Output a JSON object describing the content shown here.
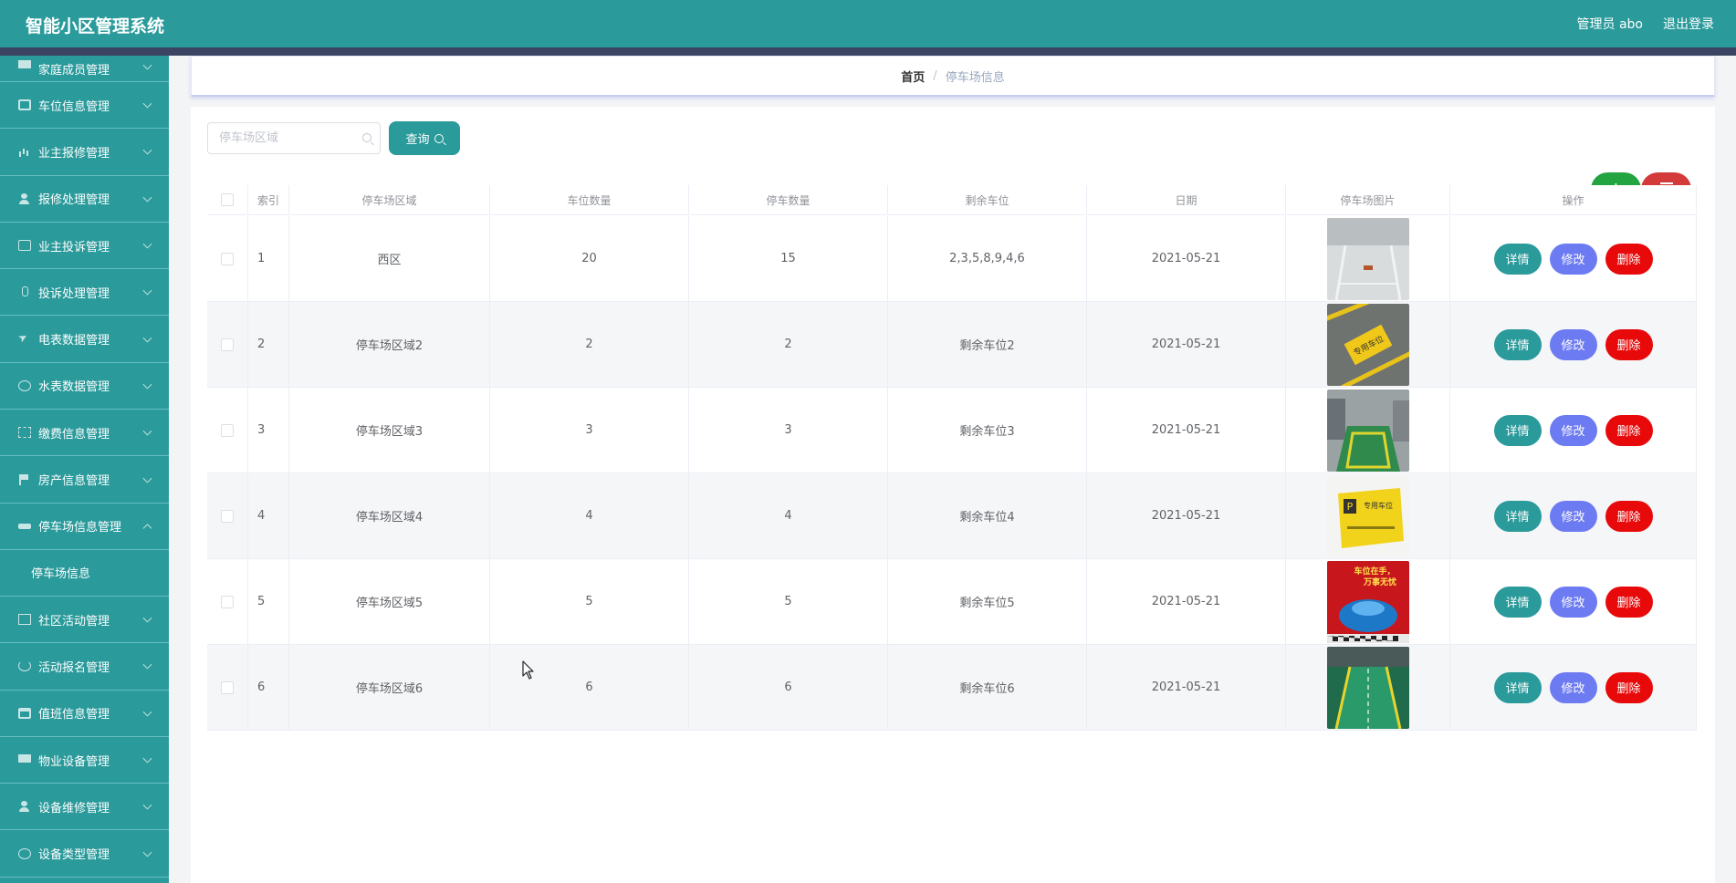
{
  "header": {
    "title": "智能小区管理系统",
    "user": "管理员 abo",
    "logout": "退出登录"
  },
  "sidebar": {
    "items": [
      {
        "label": "家庭成员管理",
        "icon": "monitor-icon"
      },
      {
        "label": "车位信息管理",
        "icon": "box-icon"
      },
      {
        "label": "业主报修管理",
        "icon": "bar-chart-icon"
      },
      {
        "label": "报修处理管理",
        "icon": "person-icon"
      },
      {
        "label": "业主投诉管理",
        "icon": "chat-icon"
      },
      {
        "label": "投诉处理管理",
        "icon": "mic-icon"
      },
      {
        "label": "电表数据管理",
        "icon": "plane-icon"
      },
      {
        "label": "水表数据管理",
        "icon": "gauge-icon"
      },
      {
        "label": "缴费信息管理",
        "icon": "frame-icon"
      },
      {
        "label": "房产信息管理",
        "icon": "flag-icon"
      },
      {
        "label": "停车场信息管理",
        "icon": "car-icon",
        "expanded": true
      },
      {
        "label": "社区活动管理",
        "icon": "mail-icon"
      },
      {
        "label": "活动报名管理",
        "icon": "power-icon"
      },
      {
        "label": "值班信息管理",
        "icon": "calendar-icon"
      },
      {
        "label": "物业设备管理",
        "icon": "monitor-icon"
      },
      {
        "label": "设备维修管理",
        "icon": "person-icon"
      },
      {
        "label": "设备类型管理",
        "icon": "globe-icon"
      }
    ],
    "subitem": "停车场信息"
  },
  "breadcrumb": {
    "home": "首页",
    "separator": "/",
    "current": "停车场信息"
  },
  "search": {
    "placeholder": "停车场区域",
    "value": "",
    "button": "查询"
  },
  "actions": {
    "add": "+",
    "delete_icon": "trash-icon"
  },
  "table": {
    "columns": [
      "索引",
      "停车场区域",
      "车位数量",
      "停车数量",
      "剩余车位",
      "日期",
      "停车场图片",
      "操作"
    ],
    "rows": [
      {
        "index": "1",
        "area": "西区",
        "spaces": "20",
        "parked": "15",
        "remaining": "2,3,5,8,9,4,6",
        "date": "2021-05-21"
      },
      {
        "index": "2",
        "area": "停车场区域2",
        "spaces": "2",
        "parked": "2",
        "remaining": "剩余车位2",
        "date": "2021-05-21"
      },
      {
        "index": "3",
        "area": "停车场区域3",
        "spaces": "3",
        "parked": "3",
        "remaining": "剩余车位3",
        "date": "2021-05-21"
      },
      {
        "index": "4",
        "area": "停车场区域4",
        "spaces": "4",
        "parked": "4",
        "remaining": "剩余车位4",
        "date": "2021-05-21"
      },
      {
        "index": "5",
        "area": "停车场区域5",
        "spaces": "5",
        "parked": "5",
        "remaining": "剩余车位5",
        "date": "2021-05-21"
      },
      {
        "index": "6",
        "area": "停车场区域6",
        "spaces": "6",
        "parked": "6",
        "remaining": "剩余车位6",
        "date": "2021-05-21"
      }
    ],
    "buttons": {
      "detail": "详情",
      "edit": "修改",
      "delete": "删除"
    },
    "images": {
      "row5_text_top": "车位在手，",
      "row5_text_bottom": "万事无忧",
      "row4_sign": "专用车位",
      "row2_sign": "专用车位"
    }
  },
  "colors": {
    "primary": "#2a9a9b",
    "edit": "#6d7bf2",
    "delete": "#e80a0a",
    "add": "#23a441",
    "dark_strip": "#3c4463"
  }
}
